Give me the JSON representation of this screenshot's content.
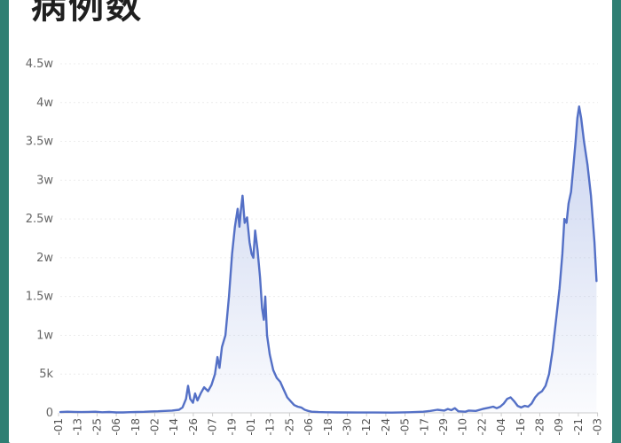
{
  "page": {
    "title": "病例数"
  },
  "chart_data": {
    "type": "area",
    "title": "病例数",
    "xlabel": "",
    "ylabel": "",
    "ylim": [
      0,
      45000
    ],
    "yticks": [
      {
        "value": 0,
        "label": "0"
      },
      {
        "value": 5000,
        "label": "5k"
      },
      {
        "value": 10000,
        "label": "1w"
      },
      {
        "value": 15000,
        "label": "1.5w"
      },
      {
        "value": 20000,
        "label": "2w"
      },
      {
        "value": 25000,
        "label": "2.5w"
      },
      {
        "value": 30000,
        "label": "3w"
      },
      {
        "value": 35000,
        "label": "3.5w"
      },
      {
        "value": 40000,
        "label": "4w"
      },
      {
        "value": 45000,
        "label": "4.5w"
      }
    ],
    "xtick_labels": [
      "-01",
      "-13",
      "-25",
      "-06",
      "-18",
      "-02",
      "-14",
      "-26",
      "-07",
      "-19",
      "-01",
      "-13",
      "-25",
      "-06",
      "-18",
      "-30",
      "-12",
      "-24",
      "-05",
      "-17",
      "-29",
      "-10",
      "-22",
      "-04",
      "-16",
      "-28",
      "-09",
      "-21",
      "-03"
    ],
    "grid": true,
    "line_color": "#5470c6",
    "fill_color": "#c9d4ee",
    "series": [
      {
        "points": [
          [
            0,
            100
          ],
          [
            2,
            150
          ],
          [
            4,
            120
          ],
          [
            6,
            100
          ],
          [
            8,
            130
          ],
          [
            10,
            150
          ],
          [
            12,
            80
          ],
          [
            14,
            110
          ],
          [
            16,
            60
          ],
          [
            18,
            60
          ],
          [
            20,
            90
          ],
          [
            22,
            110
          ],
          [
            24,
            140
          ],
          [
            26,
            180
          ],
          [
            28,
            200
          ],
          [
            30,
            250
          ],
          [
            32,
            300
          ],
          [
            34,
            400
          ],
          [
            35,
            700
          ],
          [
            36,
            1800
          ],
          [
            36.6,
            3500
          ],
          [
            37.2,
            1800
          ],
          [
            38,
            1300
          ],
          [
            38.6,
            2500
          ],
          [
            39.3,
            1600
          ],
          [
            40.2,
            2500
          ],
          [
            41.2,
            3300
          ],
          [
            42.3,
            2800
          ],
          [
            43.3,
            3600
          ],
          [
            44.3,
            5000
          ],
          [
            45,
            7200
          ],
          [
            45.6,
            5800
          ],
          [
            46.3,
            8500
          ],
          [
            47.3,
            10000
          ],
          [
            48.3,
            15000
          ],
          [
            49.2,
            20500
          ],
          [
            50,
            24000
          ],
          [
            50.8,
            26300
          ],
          [
            51.3,
            24000
          ],
          [
            51.7,
            26000
          ],
          [
            52.2,
            28000
          ],
          [
            52.8,
            24500
          ],
          [
            53.5,
            25200
          ],
          [
            54.2,
            22000
          ],
          [
            54.8,
            20500
          ],
          [
            55.3,
            20000
          ],
          [
            55.8,
            23500
          ],
          [
            56.5,
            21000
          ],
          [
            57.2,
            17500
          ],
          [
            57.8,
            13500
          ],
          [
            58.3,
            12000
          ],
          [
            58.7,
            15000
          ],
          [
            59.2,
            10000
          ],
          [
            60,
            7500
          ],
          [
            61,
            5500
          ],
          [
            62,
            4500
          ],
          [
            63,
            4000
          ],
          [
            64,
            3000
          ],
          [
            65,
            2000
          ],
          [
            66,
            1500
          ],
          [
            67,
            1000
          ],
          [
            68,
            800
          ],
          [
            69,
            700
          ],
          [
            70,
            400
          ],
          [
            71,
            250
          ],
          [
            72,
            150
          ],
          [
            74,
            100
          ],
          [
            76,
            80
          ],
          [
            80,
            60
          ],
          [
            85,
            50
          ],
          [
            90,
            40
          ],
          [
            95,
            30
          ],
          [
            100,
            80
          ],
          [
            104,
            150
          ],
          [
            106,
            250
          ],
          [
            108,
            400
          ],
          [
            110,
            300
          ],
          [
            111,
            500
          ],
          [
            112,
            350
          ],
          [
            113,
            600
          ],
          [
            114,
            200
          ],
          [
            116,
            150
          ],
          [
            117,
            300
          ],
          [
            119,
            250
          ],
          [
            121,
            500
          ],
          [
            123,
            700
          ],
          [
            124,
            800
          ],
          [
            125,
            600
          ],
          [
            126,
            800
          ],
          [
            127,
            1200
          ],
          [
            128,
            1800
          ],
          [
            129,
            2000
          ],
          [
            130,
            1500
          ],
          [
            131,
            900
          ],
          [
            132,
            700
          ],
          [
            133,
            900
          ],
          [
            134,
            800
          ],
          [
            135,
            1200
          ],
          [
            136,
            2000
          ],
          [
            137,
            2500
          ],
          [
            138,
            2800
          ],
          [
            139,
            3500
          ],
          [
            140,
            5000
          ],
          [
            141,
            8000
          ],
          [
            142,
            12000
          ],
          [
            143,
            16000
          ],
          [
            143.8,
            20500
          ],
          [
            144.4,
            25000
          ],
          [
            145,
            24500
          ],
          [
            145.6,
            27000
          ],
          [
            146.3,
            28500
          ],
          [
            147,
            32000
          ],
          [
            147.6,
            35000
          ],
          [
            148.1,
            38000
          ],
          [
            148.6,
            39500
          ],
          [
            149.2,
            38000
          ],
          [
            150,
            35000
          ],
          [
            151,
            32000
          ],
          [
            152,
            28000
          ],
          [
            153,
            22000
          ],
          [
            153.6,
            17000
          ]
        ]
      }
    ],
    "x_domain": [
      0,
      154
    ]
  }
}
